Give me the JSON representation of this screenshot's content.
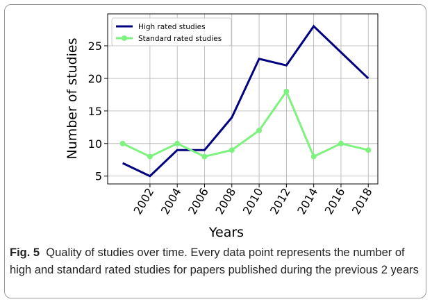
{
  "chart_data": {
    "type": "line",
    "x": [
      2000,
      2002,
      2004,
      2006,
      2008,
      2010,
      2012,
      2014,
      2016,
      2018
    ],
    "series": [
      {
        "name": "High rated studies",
        "color": "#000080",
        "values": [
          7,
          5,
          9,
          9,
          14,
          23,
          22,
          28,
          24,
          20
        ]
      },
      {
        "name": "Standard rated studies",
        "color": "#7ef27e",
        "values": [
          10,
          8,
          10,
          8,
          9,
          12,
          18,
          8,
          10,
          9
        ]
      }
    ],
    "xlim": [
      1998.9,
      2018.7
    ],
    "xticks": [
      2002,
      2004,
      2006,
      2008,
      2010,
      2012,
      2014,
      2016,
      2018
    ],
    "ylim": [
      3.8,
      29.9
    ],
    "yticks": [
      5,
      10,
      15,
      20,
      25
    ],
    "xlabel": "Years",
    "ylabel": "Number of studies",
    "grid": true,
    "legend": "upper left"
  },
  "caption": {
    "label": "Fig. 5",
    "text": "Quality of studies over time. Every data point represents the number of high and standard rated studies for papers published during the previous 2 years"
  }
}
